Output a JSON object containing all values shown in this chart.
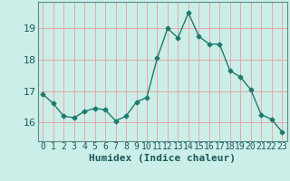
{
  "x": [
    0,
    1,
    2,
    3,
    4,
    5,
    6,
    7,
    8,
    9,
    10,
    11,
    12,
    13,
    14,
    15,
    16,
    17,
    18,
    19,
    20,
    21,
    22,
    23
  ],
  "y": [
    16.9,
    16.6,
    16.2,
    16.15,
    16.35,
    16.45,
    16.4,
    16.05,
    16.2,
    16.65,
    16.8,
    18.05,
    19.0,
    18.7,
    19.5,
    18.75,
    18.5,
    18.5,
    17.65,
    17.45,
    17.05,
    16.25,
    16.1,
    15.7
  ],
  "line_color": "#1e7a6e",
  "marker": "D",
  "marker_size": 2.5,
  "bg_color": "#cceee8",
  "plot_bg_color": "#cceee8",
  "grid_color": "#e8a0a0",
  "axis_color": "#5a8a8a",
  "xlabel": "Humidex (Indice chaleur)",
  "xlabel_fontsize": 8,
  "ylabel_ticks": [
    16,
    17,
    18,
    19
  ],
  "xlim": [
    -0.5,
    23.5
  ],
  "ylim": [
    15.4,
    19.85
  ],
  "tick_fontsize": 7,
  "line_width": 1.0
}
